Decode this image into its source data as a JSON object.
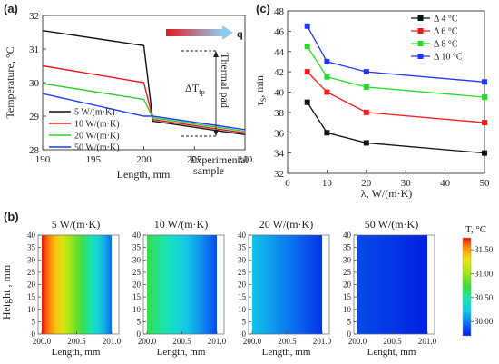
{
  "panels": {
    "a": "(a)",
    "b": "(b)",
    "c": "(c)"
  },
  "colors": {
    "s5": "#111111",
    "s10": "#e31a1c",
    "s20": "#33cc33",
    "s50": "#1f3ff0",
    "c4": "#111111",
    "c6": "#ff1a1a",
    "c8": "#22dd22",
    "c10": "#2233ff",
    "arrow_start": "#e31a1c",
    "arrow_end": "#8ecbf0"
  },
  "chart_data": [
    {
      "type": "line",
      "panel": "a",
      "xlabel": "Length, mm",
      "ylabel": "Temperature, °C",
      "xlim": [
        190,
        210
      ],
      "ylim": [
        28,
        32
      ],
      "xticks": [
        "190",
        "195",
        "200",
        "205",
        "210"
      ],
      "yticks": [
        "28",
        "29",
        "30",
        "31",
        "32"
      ],
      "series": [
        {
          "name": "5 W/(m·K)",
          "x": [
            190,
            200,
            200.9,
            210
          ],
          "y": [
            31.55,
            31.1,
            28.85,
            28.45
          ]
        },
        {
          "name": "10 W/(m·K)",
          "x": [
            190,
            200,
            200.9,
            210
          ],
          "y": [
            30.5,
            30.0,
            28.9,
            28.5
          ]
        },
        {
          "name": "20 W/(m·K)",
          "x": [
            190,
            200,
            200.9,
            210
          ],
          "y": [
            29.97,
            29.5,
            28.95,
            28.55
          ]
        },
        {
          "name": "50 W/(m·K)",
          "x": [
            190,
            200,
            200.9,
            210
          ],
          "y": [
            29.67,
            29.0,
            29.0,
            28.6
          ]
        }
      ],
      "annotations": {
        "delta": "ΔT",
        "delta_sub": "fp",
        "thermal_pad": "Thermal pad",
        "experimental": "Experimental",
        "sample": "sample",
        "q": "q"
      }
    },
    {
      "type": "line",
      "panel": "c",
      "xlabel": "λ, W/(m·K)",
      "ylabel": "τ",
      "ylabel_sub": "S",
      "ylabel_unit": ", min",
      "xlim": [
        0,
        50
      ],
      "ylim": [
        32,
        48
      ],
      "xticks": [
        "0",
        "10",
        "20",
        "30",
        "40",
        "50"
      ],
      "yticks": [
        "32",
        "34",
        "36",
        "38",
        "40",
        "42",
        "44",
        "46",
        "48"
      ],
      "series": [
        {
          "name": "Δ 4 °C",
          "x": [
            5,
            10,
            20,
            50
          ],
          "y": [
            39,
            36,
            35,
            34
          ]
        },
        {
          "name": "Δ 6 °C",
          "x": [
            5,
            10,
            20,
            50
          ],
          "y": [
            42,
            40,
            38,
            37
          ]
        },
        {
          "name": "Δ 8 °C",
          "x": [
            5,
            10,
            20,
            50
          ],
          "y": [
            44.5,
            41.5,
            40.5,
            39.5
          ]
        },
        {
          "name": "Δ 10 °C",
          "x": [
            5,
            10,
            20,
            50
          ],
          "y": [
            46.5,
            43,
            42,
            41
          ]
        }
      ]
    },
    {
      "type": "heatmap",
      "panel": "b",
      "ylabel": "Height , mm",
      "xlim": [
        200,
        201
      ],
      "ylim": [
        0,
        40
      ],
      "xticks": [
        "200.0",
        "200.5",
        "201.0"
      ],
      "yticks": [
        "0",
        "5",
        "10",
        "15",
        "20",
        "25",
        "30",
        "35",
        "40"
      ],
      "maps": [
        {
          "title": "5 W/(m·K)",
          "xlabel": "Length, mm",
          "t_left": 31.75,
          "t_right": 29.95
        },
        {
          "title": "10 W/(m·K)",
          "xlabel": "Length, mm",
          "t_left": 30.7,
          "t_right": 29.85
        },
        {
          "title": "20 W/(m·K)",
          "xlabel": "Length, mm",
          "t_left": 30.2,
          "t_right": 29.78
        },
        {
          "title": "50 W/(m·K)",
          "xlabel": "Lenght, mm",
          "t_left": 29.85,
          "t_right": 29.72
        }
      ],
      "colorbar": {
        "title": "T, °C",
        "range": [
          29.7,
          31.75
        ],
        "ticks": [
          "31.50",
          "31.00",
          "30.50",
          "30.00"
        ],
        "tick_values": [
          31.5,
          31.0,
          30.5,
          30.0
        ]
      }
    }
  ]
}
